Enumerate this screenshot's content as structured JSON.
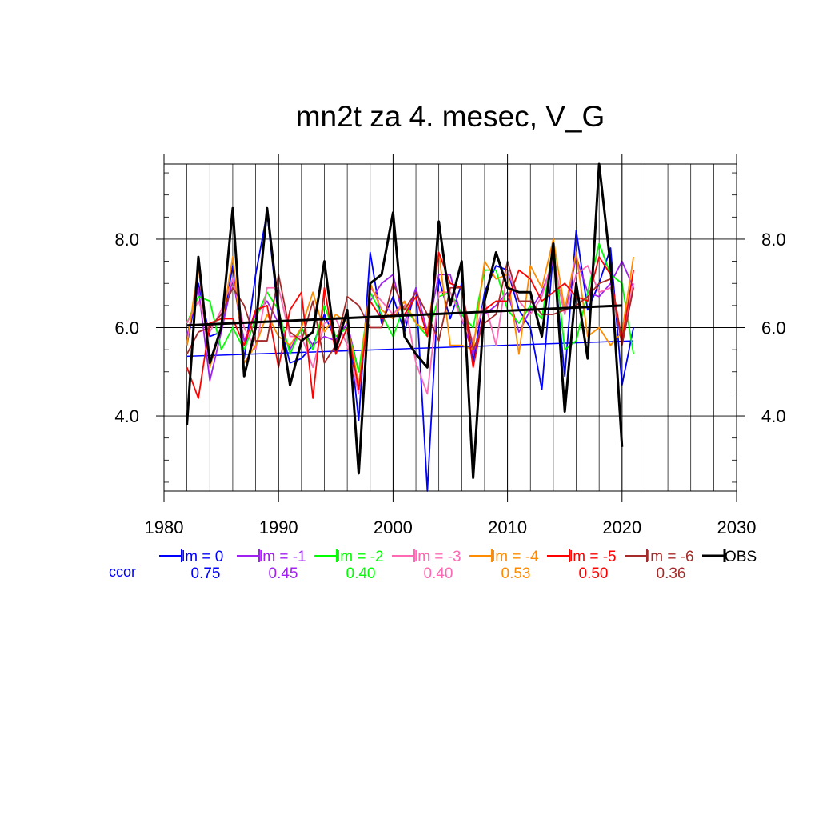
{
  "chart_data": {
    "type": "line",
    "title": "mn2t za 4. mesec, V_G",
    "xlabel": "",
    "ylabel": "",
    "xlim": [
      1980,
      2030
    ],
    "ylim": [
      2.3,
      9.7
    ],
    "x_ticks": [
      1980,
      1990,
      2000,
      2010,
      2020,
      2030
    ],
    "x_tick_labels": [
      "1980",
      "1990",
      "2000",
      "2010",
      "2020",
      "2030"
    ],
    "y_ticks": [
      4.0,
      6.0,
      8.0
    ],
    "y_tick_labels": [
      "4.0",
      "6.0",
      "8.0"
    ],
    "grid": true,
    "legend_position": "bottom",
    "ccor_label": "ccor",
    "series": [
      {
        "name": "lm = 0",
        "color": "#0000ff",
        "ccor": "0.75",
        "x": [
          1982,
          1983,
          1984,
          1985,
          1986,
          1987,
          1988,
          1989,
          1990,
          1991,
          1992,
          1993,
          1994,
          1995,
          1996,
          1997,
          1998,
          1999,
          2000,
          2001,
          2002,
          2003,
          2004,
          2005,
          2006,
          2007,
          2008,
          2009,
          2010,
          2011,
          2012,
          2013,
          2014,
          2015,
          2016,
          2017,
          2018,
          2019,
          2020,
          2021
        ],
        "values": [
          5.6,
          7.0,
          5.8,
          5.9,
          7.4,
          5.3,
          7.2,
          8.6,
          6.2,
          5.2,
          5.3,
          5.6,
          6.3,
          5.7,
          6.3,
          3.9,
          7.7,
          6.1,
          6.7,
          5.9,
          6.9,
          2.3,
          7.1,
          6.2,
          7.0,
          5.2,
          6.8,
          7.4,
          7.3,
          6.4,
          6.0,
          4.6,
          7.7,
          4.9,
          8.2,
          6.4,
          7.0,
          7.8,
          4.7,
          6.0
        ],
        "trend": {
          "x": [
            1982,
            2021
          ],
          "y": [
            5.35,
            5.7
          ]
        }
      },
      {
        "name": "lm = -1",
        "color": "#a020f0",
        "ccor": "0.45",
        "x": [
          1982,
          1983,
          1984,
          1985,
          1986,
          1987,
          1988,
          1989,
          1990,
          1991,
          1992,
          1993,
          1994,
          1995,
          1996,
          1997,
          1998,
          1999,
          2000,
          2001,
          2002,
          2003,
          2004,
          2005,
          2006,
          2007,
          2008,
          2009,
          2010,
          2011,
          2012,
          2013,
          2014,
          2015,
          2016,
          2017,
          2018,
          2019,
          2020,
          2021
        ],
        "values": [
          5.8,
          6.9,
          4.8,
          5.9,
          7.1,
          5.7,
          6.3,
          6.6,
          6.1,
          5.5,
          6.0,
          5.6,
          5.8,
          5.7,
          6.1,
          5.0,
          6.6,
          7.0,
          7.2,
          6.1,
          6.9,
          5.9,
          7.2,
          7.2,
          6.2,
          5.4,
          6.3,
          6.5,
          6.8,
          5.9,
          6.4,
          6.8,
          7.5,
          6.3,
          7.6,
          6.8,
          6.7,
          7.0,
          7.5,
          6.9
        ]
      },
      {
        "name": "lm = -2",
        "color": "#00ff00",
        "ccor": "0.40",
        "x": [
          1982,
          1983,
          1984,
          1985,
          1986,
          1987,
          1988,
          1989,
          1990,
          1991,
          1992,
          1993,
          1994,
          1995,
          1996,
          1997,
          1998,
          1999,
          2000,
          2001,
          2002,
          2003,
          2004,
          2005,
          2006,
          2007,
          2008,
          2009,
          2010,
          2011,
          2012,
          2013,
          2014,
          2015,
          2016,
          2017,
          2018,
          2019,
          2020,
          2021
        ],
        "values": [
          6.1,
          6.7,
          6.6,
          5.5,
          6.0,
          5.5,
          6.2,
          6.8,
          6.4,
          5.4,
          6.0,
          5.5,
          6.5,
          5.8,
          6.0,
          5.0,
          6.8,
          6.3,
          5.8,
          6.5,
          6.1,
          5.8,
          6.7,
          6.8,
          6.3,
          6.0,
          7.3,
          7.3,
          6.4,
          6.1,
          6.5,
          6.2,
          7.9,
          5.5,
          5.7,
          6.8,
          7.9,
          7.2,
          7.0,
          5.4
        ]
      },
      {
        "name": "lm = -3",
        "color": "#ff69b4",
        "ccor": "0.40",
        "x": [
          1982,
          1983,
          1984,
          1985,
          1986,
          1987,
          1988,
          1989,
          1990,
          1991,
          1992,
          1993,
          1994,
          1995,
          1996,
          1997,
          1998,
          1999,
          2000,
          2001,
          2002,
          2003,
          2004,
          2005,
          2006,
          2007,
          2008,
          2009,
          2010,
          2011,
          2012,
          2013,
          2014,
          2015,
          2016,
          2017,
          2018,
          2019,
          2020,
          2021
        ],
        "values": [
          6.1,
          6.6,
          5.9,
          6.4,
          7.1,
          6.0,
          5.5,
          6.9,
          6.9,
          5.8,
          5.8,
          5.1,
          6.1,
          6.2,
          5.6,
          4.5,
          6.9,
          6.6,
          6.3,
          6.6,
          5.2,
          4.5,
          6.8,
          6.8,
          6.2,
          5.7,
          6.6,
          5.6,
          7.3,
          6.6,
          6.3,
          6.7,
          7.6,
          6.3,
          7.2,
          7.4,
          6.8,
          6.9,
          5.7,
          7.0
        ]
      },
      {
        "name": "lm = -4",
        "color": "#ff8c00",
        "ccor": "0.53",
        "x": [
          1982,
          1983,
          1984,
          1985,
          1986,
          1987,
          1988,
          1989,
          1990,
          1991,
          1992,
          1993,
          1994,
          1995,
          1996,
          1997,
          1998,
          1999,
          2000,
          2001,
          2002,
          2003,
          2004,
          2005,
          2006,
          2007,
          2008,
          2009,
          2010,
          2011,
          2012,
          2013,
          2014,
          2015,
          2016,
          2017,
          2018,
          2019,
          2020,
          2021
        ],
        "values": [
          5.6,
          7.4,
          5.1,
          6.0,
          7.6,
          5.2,
          5.6,
          6.3,
          5.8,
          5.6,
          6.0,
          6.8,
          5.9,
          6.3,
          6.1,
          4.7,
          7.0,
          6.4,
          6.2,
          6.6,
          6.1,
          5.9,
          7.7,
          5.6,
          5.6,
          5.5,
          7.5,
          7.1,
          7.2,
          5.4,
          7.4,
          6.9,
          8.0,
          6.4,
          7.7,
          5.8,
          6.0,
          5.6,
          5.9,
          7.6
        ]
      },
      {
        "name": "lm = -5",
        "color": "#ff0000",
        "ccor": "0.50",
        "x": [
          1982,
          1983,
          1984,
          1985,
          1986,
          1987,
          1988,
          1989,
          1990,
          1991,
          1992,
          1993,
          1994,
          1995,
          1996,
          1997,
          1998,
          1999,
          2000,
          2001,
          2002,
          2003,
          2004,
          2005,
          2006,
          2007,
          2008,
          2009,
          2010,
          2011,
          2012,
          2013,
          2014,
          2015,
          2016,
          2017,
          2018,
          2019,
          2020,
          2021
        ],
        "values": [
          5.1,
          4.4,
          6.1,
          6.2,
          6.2,
          5.6,
          6.4,
          6.5,
          5.1,
          6.4,
          6.8,
          4.4,
          6.9,
          5.4,
          6.0,
          4.6,
          6.6,
          6.2,
          6.3,
          6.3,
          6.7,
          5.8,
          7.7,
          7.0,
          6.9,
          5.1,
          6.4,
          6.6,
          6.6,
          7.3,
          7.1,
          6.6,
          6.8,
          7.0,
          6.7,
          6.6,
          7.6,
          7.2,
          5.7,
          7.3
        ]
      },
      {
        "name": "lm = -6",
        "color": "#a52a2a",
        "ccor": "0.36",
        "x": [
          1982,
          1983,
          1984,
          1985,
          1986,
          1987,
          1988,
          1989,
          1990,
          1991,
          1992,
          1993,
          1994,
          1995,
          1996,
          1997,
          1998,
          1999,
          2000,
          2001,
          2002,
          2003,
          2004,
          2005,
          2006,
          2007,
          2008,
          2009,
          2010,
          2011,
          2012,
          2013,
          2014,
          2015,
          2016,
          2017,
          2018,
          2019,
          2020,
          2021
        ],
        "values": [
          5.4,
          5.9,
          6.0,
          6.3,
          6.9,
          6.5,
          5.7,
          5.7,
          7.2,
          5.9,
          5.7,
          6.6,
          5.2,
          5.6,
          6.7,
          6.5,
          6.0,
          6.0,
          7.0,
          6.4,
          6.8,
          6.3,
          5.7,
          6.9,
          6.9,
          5.5,
          6.1,
          6.3,
          7.5,
          6.6,
          6.6,
          6.3,
          6.3,
          6.4,
          6.5,
          6.7,
          7.0,
          7.1,
          5.6,
          6.9
        ]
      },
      {
        "name": "OBS",
        "color": "#000000",
        "ccor": "",
        "x": [
          1982,
          1983,
          1984,
          1985,
          1986,
          1987,
          1988,
          1989,
          1990,
          1991,
          1992,
          1993,
          1994,
          1995,
          1996,
          1997,
          1998,
          1999,
          2000,
          2001,
          2002,
          2003,
          2004,
          2005,
          2006,
          2007,
          2008,
          2009,
          2010,
          2011,
          2012,
          2013,
          2014,
          2015,
          2016,
          2017,
          2018,
          2019,
          2020
        ],
        "values": [
          3.8,
          7.6,
          5.2,
          6.0,
          8.7,
          4.9,
          6.0,
          8.7,
          6.4,
          4.7,
          5.7,
          5.9,
          7.5,
          5.5,
          6.4,
          2.7,
          7.0,
          7.2,
          8.6,
          5.8,
          5.4,
          5.1,
          8.4,
          6.5,
          7.5,
          2.6,
          6.6,
          7.7,
          6.9,
          6.8,
          6.8,
          5.8,
          7.9,
          4.1,
          7.0,
          5.3,
          9.7,
          7.4,
          3.3
        ],
        "trend": {
          "x": [
            1982,
            2020
          ],
          "y": [
            6.05,
            6.5
          ]
        }
      }
    ]
  }
}
